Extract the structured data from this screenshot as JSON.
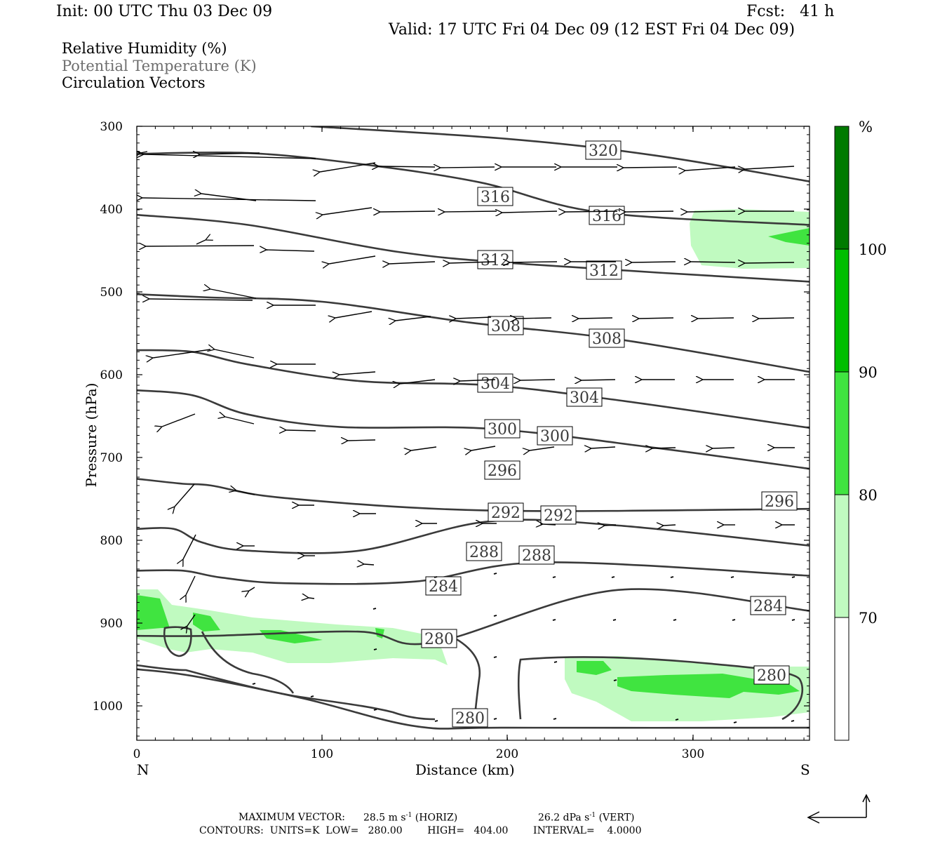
{
  "header": {
    "init": "Init: 00 UTC Thu 03 Dec 09",
    "fcst": "Fcst:   41 h",
    "valid": "Valid: 17 UTC Fri 04 Dec 09 (12 EST Fri 04 Dec 09)"
  },
  "legend": {
    "rh": "Relative Humidity (%)",
    "theta": "Potential Temperature (K)",
    "vectors": "Circulation Vectors"
  },
  "colors": {
    "rh70": "#c0fac0",
    "rh80": "#40e440",
    "rh90": "#00be00",
    "rh100": "#007a00",
    "theta_line": "#3a3a3a",
    "vector": "#000000"
  },
  "chart_data": {
    "type": "cross-section",
    "xlabel": "Distance (km)",
    "ylabel": "Pressure (hPa)",
    "xlim": [
      0,
      363
    ],
    "ylim": [
      1035,
      300
    ],
    "x_ticks": [
      "0",
      "100",
      "200",
      "300"
    ],
    "y_ticks": [
      "300",
      "400",
      "500",
      "600",
      "700",
      "800",
      "900",
      "1000"
    ],
    "x_end_labels": {
      "left": "N",
      "right": "S"
    },
    "colorbar": {
      "unit": "%",
      "levels": [
        "70",
        "80",
        "90",
        "100"
      ],
      "colors": [
        "#c0fac0",
        "#40e440",
        "#00be00",
        "#007a00"
      ]
    },
    "theta_contours": [
      {
        "value": 320,
        "labels": [
          "320"
        ],
        "points": [
          [
            94,
            300
          ],
          [
            200,
            315
          ],
          [
            280,
            335
          ],
          [
            363,
            366
          ]
        ]
      },
      {
        "value": 316,
        "labels": [
          "316",
          "316"
        ],
        "points": [
          [
            0,
            333
          ],
          [
            60,
            332
          ],
          [
            120,
            345
          ],
          [
            185,
            367
          ],
          [
            250,
            403
          ],
          [
            363,
            418
          ]
        ]
      },
      {
        "value": 312,
        "labels": [
          "312",
          "312"
        ],
        "points": [
          [
            0,
            406
          ],
          [
            60,
            418
          ],
          [
            140,
            450
          ],
          [
            210,
            465
          ],
          [
            363,
            486
          ]
        ]
      },
      {
        "value": 308,
        "labels": [
          "308",
          "308"
        ],
        "points": [
          [
            0,
            501
          ],
          [
            40,
            505
          ],
          [
            100,
            510
          ],
          [
            180,
            535
          ],
          [
            260,
            555
          ],
          [
            363,
            594
          ]
        ]
      },
      {
        "value": 304,
        "labels": [
          "304",
          "304"
        ],
        "points": [
          [
            0,
            568
          ],
          [
            30,
            570
          ],
          [
            60,
            585
          ],
          [
            120,
            605
          ],
          [
            190,
            610
          ],
          [
            260,
            628
          ],
          [
            363,
            661
          ]
        ]
      },
      {
        "value": 300,
        "labels": [
          "300",
          "300"
        ],
        "points": [
          [
            0,
            616
          ],
          [
            30,
            622
          ],
          [
            60,
            645
          ],
          [
            110,
            660
          ],
          [
            190,
            662
          ],
          [
            280,
            685
          ],
          [
            363,
            710
          ]
        ]
      },
      {
        "value": 296,
        "labels": [
          "296",
          "296"
        ],
        "points": [
          [
            0,
            722
          ],
          [
            25,
            728
          ],
          [
            40,
            730
          ],
          [
            80,
            745
          ],
          [
            190,
            760
          ],
          [
            363,
            758
          ]
        ]
      },
      {
        "value": 292,
        "labels": [
          "292",
          "292"
        ],
        "points": [
          [
            0,
            782
          ],
          [
            20,
            782
          ],
          [
            35,
            798
          ],
          [
            60,
            808
          ],
          [
            120,
            808
          ],
          [
            190,
            773
          ],
          [
            260,
            778
          ],
          [
            363,
            802
          ]
        ]
      },
      {
        "value": 288,
        "labels": [
          "288",
          "288"
        ],
        "points": [
          [
            0,
            832
          ],
          [
            25,
            832
          ],
          [
            45,
            840
          ],
          [
            80,
            847
          ],
          [
            150,
            845
          ],
          [
            220,
            822
          ],
          [
            363,
            838
          ]
        ]
      },
      {
        "value": 284,
        "labels": [
          "284",
          "284"
        ],
        "points": [
          [
            0,
            910
          ],
          [
            40,
            910
          ],
          [
            120,
            905
          ],
          [
            160,
            918
          ],
          [
            260,
            855
          ],
          [
            363,
            880
          ]
        ]
      },
      {
        "value": 280,
        "labels": [
          "280",
          "280",
          "280"
        ],
        "points": [
          [
            0,
            950
          ],
          [
            30,
            958
          ],
          [
            90,
            985
          ],
          [
            150,
            1018
          ],
          [
            200,
            1020
          ],
          [
            363,
            1020
          ]
        ]
      }
    ],
    "vector_scale": {
      "max_horiz": "28.5 m s-1 (HORIZ)",
      "max_vert": "26.2 dPa s-1 (VERT)"
    }
  },
  "footer": {
    "line1_label": "MAXIMUM VECTOR:",
    "horiz_value": "28.5 m s",
    "horiz_unit": "(HORIZ)",
    "vert_value": "26.2 dPa s",
    "vert_unit": "(VERT)",
    "exponent": "-1",
    "line2": "CONTOURS:  UNITS=K  LOW=   280.00        HIGH=   404.00        INTERVAL=    4.0000"
  }
}
